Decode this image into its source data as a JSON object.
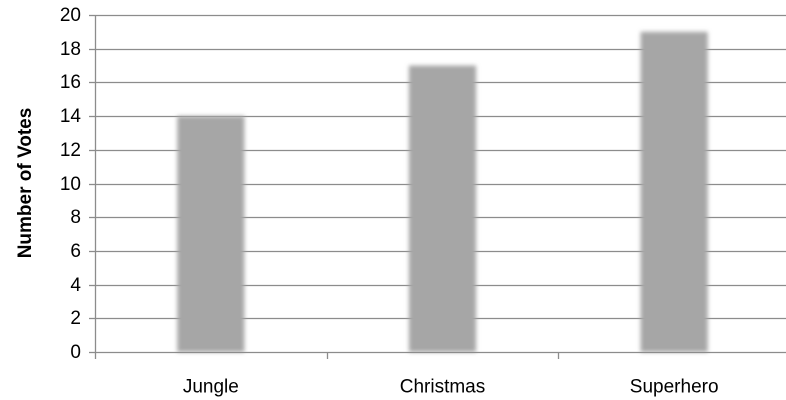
{
  "chart_data": {
    "type": "bar",
    "title": "",
    "xlabel": "",
    "ylabel": "Number of Votes",
    "categories": [
      "Jungle",
      "Christmas",
      "Superhero"
    ],
    "values": [
      14,
      17,
      19
    ],
    "ylim": [
      0,
      20
    ],
    "yticks": [
      0,
      2,
      4,
      6,
      8,
      10,
      12,
      14,
      16,
      18,
      20
    ],
    "grid": true,
    "legend": "none",
    "bar_color": "#a6a6a6",
    "grid_color": "#8c8c8c",
    "axis_color": "#8c8c8c"
  }
}
